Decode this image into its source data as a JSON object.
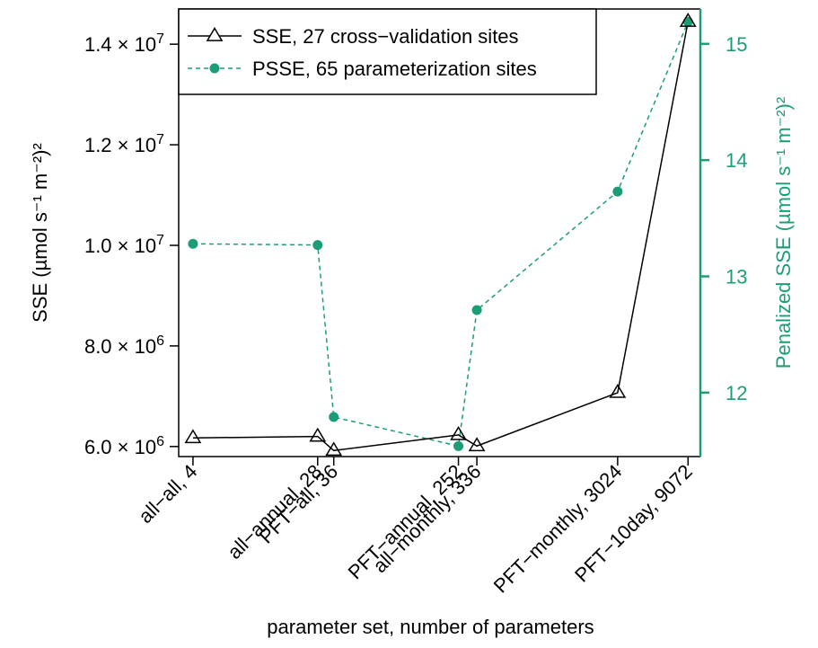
{
  "chart_data": {
    "type": "line",
    "xlabel": "parameter set, number of parameters",
    "ylabel_left": "SSE (µmol s⁻¹ m⁻²)²",
    "ylabel_right": "Penalized SSE (µmol s⁻¹ m⁻²)²",
    "categories": [
      "all−all, 4",
      "all−annual, 28",
      "PFT−all, 36",
      "PFT−annual, 252",
      "all−monthly, 336",
      "PFT−monthly, 3024",
      "PFT−10day, 9072"
    ],
    "x": [
      4,
      28,
      36,
      252,
      336,
      3024,
      9072
    ],
    "x_scale": "log",
    "left_axis": {
      "ylim": [
        5800000,
        14700000
      ],
      "ticks": [
        6000000,
        8000000,
        10000000,
        12000000,
        14000000
      ],
      "tick_labels": [
        {
          "mant": "6.0",
          "exp": "6"
        },
        {
          "mant": "8.0",
          "exp": "6"
        },
        {
          "mant": "1.0",
          "exp": "7"
        },
        {
          "mant": "1.2",
          "exp": "7"
        },
        {
          "mant": "1.4",
          "exp": "7"
        }
      ]
    },
    "right_axis": {
      "ylim": [
        11.45,
        15.3
      ],
      "ticks": [
        12,
        13,
        14,
        15
      ],
      "tick_labels": [
        "12",
        "13",
        "14",
        "15"
      ]
    },
    "series": [
      {
        "name": "SSE, 27 cross−validation sites",
        "axis": "left",
        "marker": "triangle-open",
        "line": "solid",
        "color": "#000000",
        "values": [
          6170000,
          6200000,
          5920000,
          6230000,
          6010000,
          7070000,
          14450000
        ]
      },
      {
        "name": "PSSE, 65 parameterization sites",
        "axis": "right",
        "marker": "circle-filled",
        "line": "dashed",
        "color": "#1b9e77",
        "values": [
          13.28,
          13.27,
          11.79,
          11.54,
          12.71,
          13.73,
          15.19
        ]
      }
    ],
    "legend_position": "top-left"
  }
}
